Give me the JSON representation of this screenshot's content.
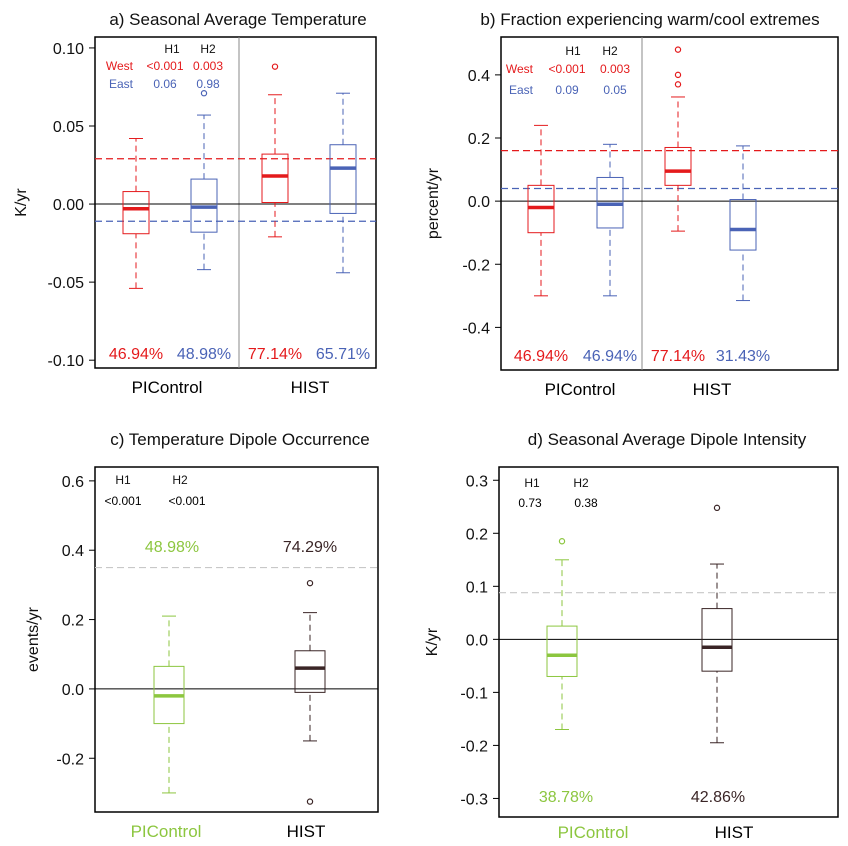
{
  "chart_data": [
    {
      "id": "a",
      "type": "boxplot",
      "title": "a) Seasonal Average Temperature",
      "ylabel": "K/yr",
      "ylim": [
        -0.105,
        0.107
      ],
      "yticks": [
        -0.1,
        -0.05,
        0.0,
        0.05,
        0.1
      ],
      "ytick_labels": [
        "-0.10",
        "-0.05",
        "0.00",
        "0.05",
        "0.10"
      ],
      "groups": [
        "PIControl",
        "HIST"
      ],
      "group_label_colors": [
        "#000000",
        "#000000"
      ],
      "separator": true,
      "hlines": [
        {
          "y": 0.029,
          "color": "#e41a1c",
          "dashed": true
        },
        {
          "y": -0.011,
          "color": "#4a63b6",
          "dashed": true
        },
        {
          "y": 0.0,
          "color": "#000000",
          "dashed": false
        }
      ],
      "boxes": [
        {
          "group": 0,
          "slot": 0,
          "color": "#e41a1c",
          "min": -0.054,
          "q1": -0.019,
          "median": -0.003,
          "q3": 0.008,
          "max": 0.042,
          "outliers": [],
          "pct": "46.94%"
        },
        {
          "group": 0,
          "slot": 1,
          "color": "#4a63b6",
          "min": -0.042,
          "q1": -0.018,
          "median": -0.002,
          "q3": 0.016,
          "max": 0.057,
          "outliers": [
            0.071
          ],
          "pct": "48.98%"
        },
        {
          "group": 1,
          "slot": 0,
          "color": "#e41a1c",
          "min": -0.021,
          "q1": 0.001,
          "median": 0.018,
          "q3": 0.032,
          "max": 0.07,
          "outliers": [
            0.088
          ],
          "pct": "77.14%"
        },
        {
          "group": 1,
          "slot": 1,
          "color": "#4a63b6",
          "min": -0.044,
          "q1": -0.006,
          "median": 0.023,
          "q3": 0.038,
          "max": 0.071,
          "outliers": [],
          "pct": "65.71%"
        }
      ],
      "stats_table": {
        "headers": [
          "H1",
          "H2"
        ],
        "rows": [
          {
            "label": "West",
            "color": "#e41a1c",
            "values": [
              "<0.001",
              "0.003"
            ]
          },
          {
            "label": "East",
            "color": "#4a63b6",
            "values": [
              "0.06",
              "0.98"
            ]
          }
        ]
      }
    },
    {
      "id": "b",
      "type": "boxplot",
      "title": "b) Fraction experiencing warm/cool extremes",
      "ylabel": "percent/yr",
      "ylim": [
        -0.535,
        0.52
      ],
      "yticks": [
        -0.4,
        -0.2,
        0.0,
        0.2,
        0.4
      ],
      "ytick_labels": [
        "-0.4",
        "-0.2",
        "0.0",
        "0.2",
        "0.4"
      ],
      "groups": [
        "PIControl",
        "HIST"
      ],
      "group_label_colors": [
        "#000000",
        "#000000"
      ],
      "separator": true,
      "hlines": [
        {
          "y": 0.16,
          "color": "#e41a1c",
          "dashed": true
        },
        {
          "y": 0.04,
          "color": "#4a63b6",
          "dashed": true
        },
        {
          "y": 0.0,
          "color": "#000000",
          "dashed": false
        }
      ],
      "boxes": [
        {
          "group": 0,
          "slot": 0,
          "color": "#e41a1c",
          "min": -0.3,
          "q1": -0.1,
          "median": -0.02,
          "q3": 0.05,
          "max": 0.24,
          "outliers": [],
          "pct": "46.94%"
        },
        {
          "group": 0,
          "slot": 1,
          "color": "#4a63b6",
          "min": -0.3,
          "q1": -0.085,
          "median": -0.01,
          "q3": 0.075,
          "max": 0.18,
          "outliers": [],
          "pct": "46.94%"
        },
        {
          "group": 1,
          "slot": 0,
          "color": "#e41a1c",
          "min": -0.095,
          "q1": 0.05,
          "median": 0.095,
          "q3": 0.17,
          "max": 0.33,
          "outliers": [
            0.37,
            0.4,
            0.48
          ],
          "pct": "77.14%"
        },
        {
          "group": 1,
          "slot": 1,
          "color": "#4a63b6",
          "min": -0.315,
          "q1": -0.155,
          "median": -0.09,
          "q3": 0.005,
          "max": 0.175,
          "outliers": [],
          "pct": "31.43%"
        }
      ],
      "stats_table": {
        "headers": [
          "H1",
          "H2"
        ],
        "rows": [
          {
            "label": "West",
            "color": "#e41a1c",
            "values": [
              "<0.001",
              "0.003"
            ]
          },
          {
            "label": "East",
            "color": "#4a63b6",
            "values": [
              "0.09",
              "0.05"
            ]
          }
        ]
      }
    },
    {
      "id": "c",
      "type": "boxplot",
      "title": "c) Temperature Dipole Occurrence",
      "ylabel": "events/yr",
      "ylim": [
        -0.355,
        0.64
      ],
      "yticks": [
        -0.2,
        0.0,
        0.2,
        0.4,
        0.6
      ],
      "ytick_labels": [
        "-0.2",
        "0.0",
        "0.2",
        "0.4",
        "0.6"
      ],
      "groups": [
        "PIControl",
        "HIST"
      ],
      "group_label_colors": [
        "#8cc63f",
        "#000000"
      ],
      "separator": false,
      "hlines": [
        {
          "y": 0.35,
          "color": "#c8c8c8",
          "dashed": true
        },
        {
          "y": 0.0,
          "color": "#000000",
          "dashed": false
        }
      ],
      "boxes": [
        {
          "group": 0,
          "slot": 0,
          "color": "#8cc63f",
          "min": -0.3,
          "q1": -0.1,
          "median": -0.02,
          "q3": 0.065,
          "max": 0.21,
          "outliers": [],
          "pct": "48.98%"
        },
        {
          "group": 1,
          "slot": 0,
          "color": "#3a2526",
          "min": -0.15,
          "q1": -0.01,
          "median": 0.06,
          "q3": 0.11,
          "max": 0.22,
          "outliers": [
            0.305,
            -0.325
          ],
          "pct": "74.29%"
        }
      ],
      "stats_table": {
        "headers": [
          "H1",
          "H2"
        ],
        "rows": [
          {
            "label": "",
            "color": "#000000",
            "values": [
              "<0.001",
              "<0.001"
            ]
          }
        ]
      }
    },
    {
      "id": "d",
      "type": "boxplot",
      "title": "d) Seasonal Average Dipole Intensity",
      "ylabel": "K/yr",
      "ylim": [
        -0.335,
        0.325
      ],
      "yticks": [
        -0.3,
        -0.2,
        -0.1,
        0.0,
        0.1,
        0.2,
        0.3
      ],
      "ytick_labels": [
        "-0.3",
        "-0.2",
        "-0.1",
        "0.0",
        "0.1",
        "0.2",
        "0.3"
      ],
      "groups": [
        "PIControl",
        "HIST"
      ],
      "group_label_colors": [
        "#8cc63f",
        "#000000"
      ],
      "separator": false,
      "hlines": [
        {
          "y": 0.088,
          "color": "#c8c8c8",
          "dashed": true
        },
        {
          "y": 0.0,
          "color": "#000000",
          "dashed": false
        }
      ],
      "boxes": [
        {
          "group": 0,
          "slot": 0,
          "color": "#8cc63f",
          "min": -0.17,
          "q1": -0.07,
          "median": -0.03,
          "q3": 0.025,
          "max": 0.15,
          "outliers": [
            0.185
          ],
          "pct": "38.78%"
        },
        {
          "group": 1,
          "slot": 0,
          "color": "#3a2526",
          "min": -0.195,
          "q1": -0.06,
          "median": -0.015,
          "q3": 0.058,
          "max": 0.142,
          "outliers": [
            0.248
          ],
          "pct": "42.86%"
        }
      ],
      "stats_table": {
        "headers": [
          "H1",
          "H2"
        ],
        "rows": [
          {
            "label": "",
            "color": "#000000",
            "values": [
              "0.73",
              "0.38"
            ]
          }
        ]
      }
    }
  ]
}
